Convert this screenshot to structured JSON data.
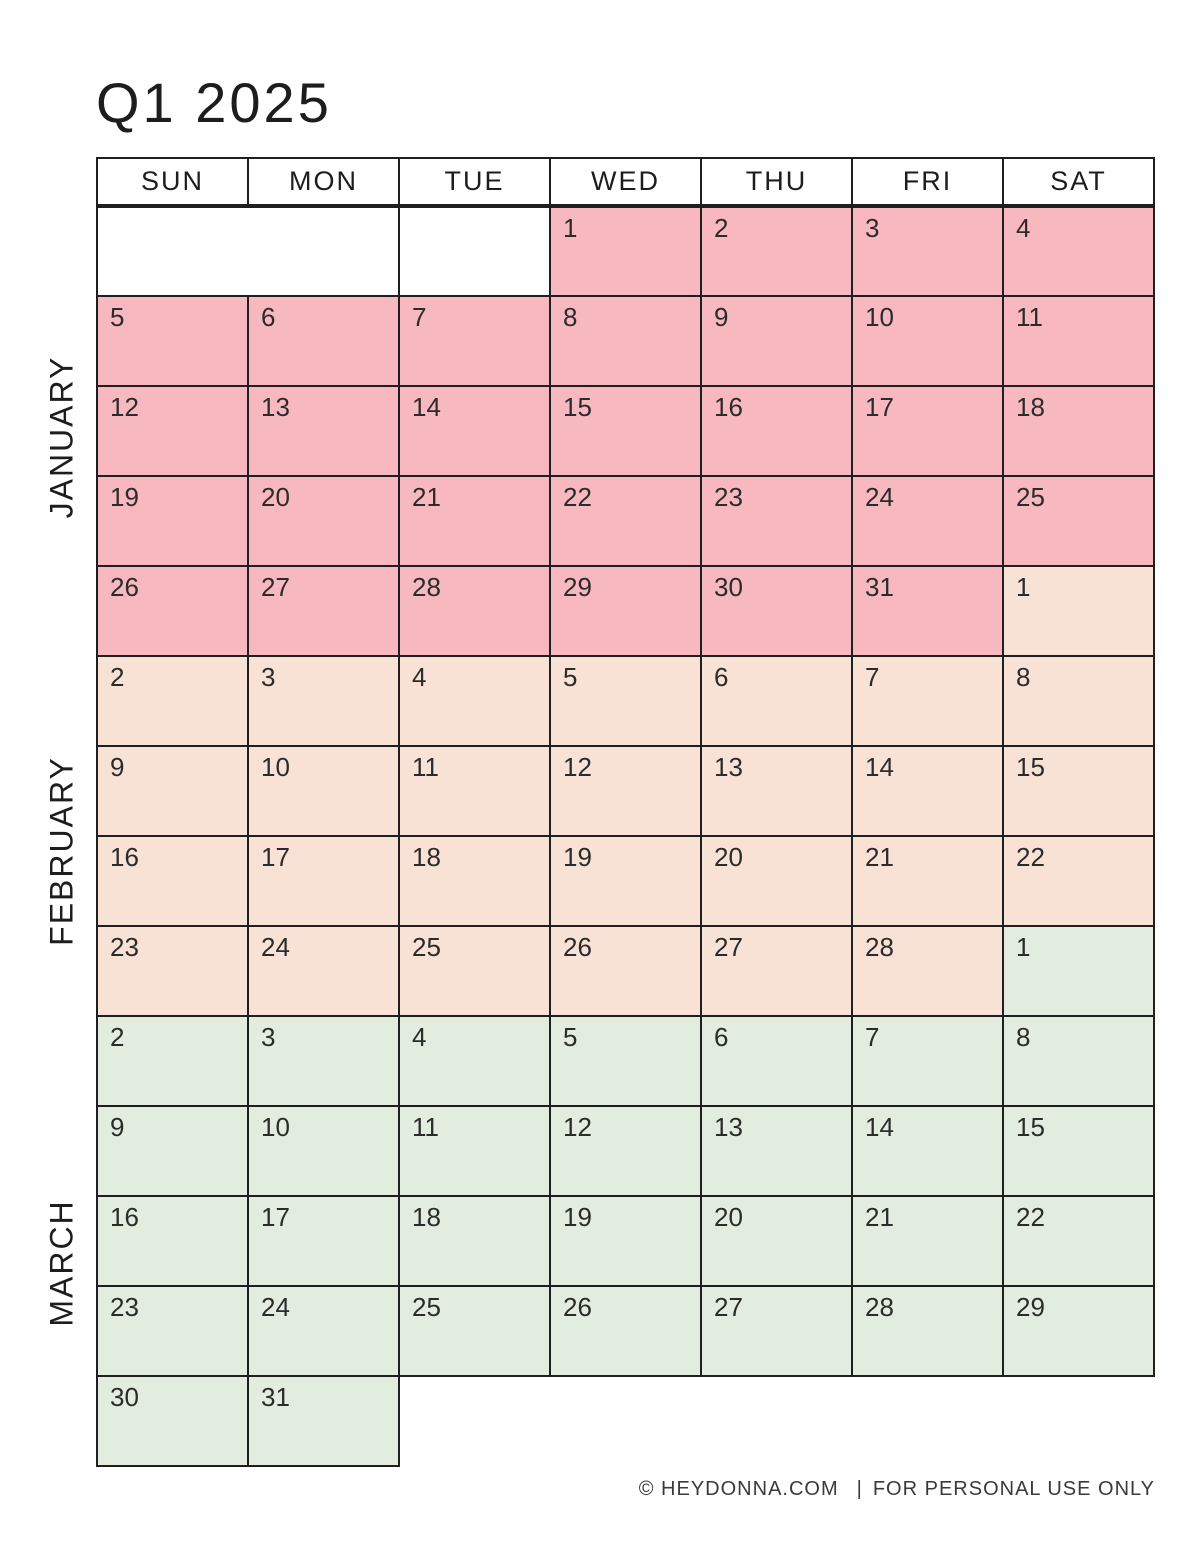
{
  "title": "Q1 2025",
  "weekday_headers": [
    "SUN",
    "MON",
    "TUE",
    "WED",
    "THU",
    "FRI",
    "SAT"
  ],
  "colors": {
    "january": "#f7b9bf",
    "february": "#f8e2d5",
    "march": "#e2ecdf",
    "border": "#1f1f1f"
  },
  "month_labels": [
    {
      "name": "JANUARY"
    },
    {
      "name": "FEBRUARY"
    },
    {
      "name": "MARCH"
    }
  ],
  "weeks": [
    {
      "cells": [
        {
          "type": "empty",
          "span": 2
        },
        {
          "type": "empty",
          "span": 1
        },
        {
          "type": "day",
          "day": 1,
          "month": "january"
        },
        {
          "type": "day",
          "day": 2,
          "month": "january"
        },
        {
          "type": "day",
          "day": 3,
          "month": "january"
        },
        {
          "type": "day",
          "day": 4,
          "month": "january"
        }
      ]
    },
    {
      "cells": [
        {
          "type": "day",
          "day": 5,
          "month": "january"
        },
        {
          "type": "day",
          "day": 6,
          "month": "january"
        },
        {
          "type": "day",
          "day": 7,
          "month": "january"
        },
        {
          "type": "day",
          "day": 8,
          "month": "january"
        },
        {
          "type": "day",
          "day": 9,
          "month": "january"
        },
        {
          "type": "day",
          "day": 10,
          "month": "january"
        },
        {
          "type": "day",
          "day": 11,
          "month": "january"
        }
      ]
    },
    {
      "cells": [
        {
          "type": "day",
          "day": 12,
          "month": "january"
        },
        {
          "type": "day",
          "day": 13,
          "month": "january"
        },
        {
          "type": "day",
          "day": 14,
          "month": "january"
        },
        {
          "type": "day",
          "day": 15,
          "month": "january"
        },
        {
          "type": "day",
          "day": 16,
          "month": "january"
        },
        {
          "type": "day",
          "day": 17,
          "month": "january"
        },
        {
          "type": "day",
          "day": 18,
          "month": "january"
        }
      ]
    },
    {
      "cells": [
        {
          "type": "day",
          "day": 19,
          "month": "january"
        },
        {
          "type": "day",
          "day": 20,
          "month": "january"
        },
        {
          "type": "day",
          "day": 21,
          "month": "january"
        },
        {
          "type": "day",
          "day": 22,
          "month": "january"
        },
        {
          "type": "day",
          "day": 23,
          "month": "january"
        },
        {
          "type": "day",
          "day": 24,
          "month": "january"
        },
        {
          "type": "day",
          "day": 25,
          "month": "january"
        }
      ]
    },
    {
      "cells": [
        {
          "type": "day",
          "day": 26,
          "month": "january"
        },
        {
          "type": "day",
          "day": 27,
          "month": "january"
        },
        {
          "type": "day",
          "day": 28,
          "month": "january"
        },
        {
          "type": "day",
          "day": 29,
          "month": "january"
        },
        {
          "type": "day",
          "day": 30,
          "month": "january"
        },
        {
          "type": "day",
          "day": 31,
          "month": "january"
        },
        {
          "type": "day",
          "day": 1,
          "month": "february"
        }
      ]
    },
    {
      "cells": [
        {
          "type": "day",
          "day": 2,
          "month": "february"
        },
        {
          "type": "day",
          "day": 3,
          "month": "february"
        },
        {
          "type": "day",
          "day": 4,
          "month": "february"
        },
        {
          "type": "day",
          "day": 5,
          "month": "february"
        },
        {
          "type": "day",
          "day": 6,
          "month": "february"
        },
        {
          "type": "day",
          "day": 7,
          "month": "february"
        },
        {
          "type": "day",
          "day": 8,
          "month": "february"
        }
      ]
    },
    {
      "cells": [
        {
          "type": "day",
          "day": 9,
          "month": "february"
        },
        {
          "type": "day",
          "day": 10,
          "month": "february"
        },
        {
          "type": "day",
          "day": 11,
          "month": "february"
        },
        {
          "type": "day",
          "day": 12,
          "month": "february"
        },
        {
          "type": "day",
          "day": 13,
          "month": "february"
        },
        {
          "type": "day",
          "day": 14,
          "month": "february"
        },
        {
          "type": "day",
          "day": 15,
          "month": "february"
        }
      ]
    },
    {
      "cells": [
        {
          "type": "day",
          "day": 16,
          "month": "february"
        },
        {
          "type": "day",
          "day": 17,
          "month": "february"
        },
        {
          "type": "day",
          "day": 18,
          "month": "february"
        },
        {
          "type": "day",
          "day": 19,
          "month": "february"
        },
        {
          "type": "day",
          "day": 20,
          "month": "february"
        },
        {
          "type": "day",
          "day": 21,
          "month": "february"
        },
        {
          "type": "day",
          "day": 22,
          "month": "february"
        }
      ]
    },
    {
      "cells": [
        {
          "type": "day",
          "day": 23,
          "month": "february"
        },
        {
          "type": "day",
          "day": 24,
          "month": "february"
        },
        {
          "type": "day",
          "day": 25,
          "month": "february"
        },
        {
          "type": "day",
          "day": 26,
          "month": "february"
        },
        {
          "type": "day",
          "day": 27,
          "month": "february"
        },
        {
          "type": "day",
          "day": 28,
          "month": "february"
        },
        {
          "type": "day",
          "day": 1,
          "month": "march"
        }
      ]
    },
    {
      "cells": [
        {
          "type": "day",
          "day": 2,
          "month": "march"
        },
        {
          "type": "day",
          "day": 3,
          "month": "march"
        },
        {
          "type": "day",
          "day": 4,
          "month": "march"
        },
        {
          "type": "day",
          "day": 5,
          "month": "march"
        },
        {
          "type": "day",
          "day": 6,
          "month": "march"
        },
        {
          "type": "day",
          "day": 7,
          "month": "march"
        },
        {
          "type": "day",
          "day": 8,
          "month": "march"
        }
      ]
    },
    {
      "cells": [
        {
          "type": "day",
          "day": 9,
          "month": "march"
        },
        {
          "type": "day",
          "day": 10,
          "month": "march"
        },
        {
          "type": "day",
          "day": 11,
          "month": "march"
        },
        {
          "type": "day",
          "day": 12,
          "month": "march"
        },
        {
          "type": "day",
          "day": 13,
          "month": "march"
        },
        {
          "type": "day",
          "day": 14,
          "month": "march"
        },
        {
          "type": "day",
          "day": 15,
          "month": "march"
        }
      ]
    },
    {
      "cells": [
        {
          "type": "day",
          "day": 16,
          "month": "march"
        },
        {
          "type": "day",
          "day": 17,
          "month": "march"
        },
        {
          "type": "day",
          "day": 18,
          "month": "march"
        },
        {
          "type": "day",
          "day": 19,
          "month": "march"
        },
        {
          "type": "day",
          "day": 20,
          "month": "march"
        },
        {
          "type": "day",
          "day": 21,
          "month": "march"
        },
        {
          "type": "day",
          "day": 22,
          "month": "march"
        }
      ]
    },
    {
      "cells": [
        {
          "type": "day",
          "day": 23,
          "month": "march"
        },
        {
          "type": "day",
          "day": 24,
          "month": "march"
        },
        {
          "type": "day",
          "day": 25,
          "month": "march"
        },
        {
          "type": "day",
          "day": 26,
          "month": "march"
        },
        {
          "type": "day",
          "day": 27,
          "month": "march"
        },
        {
          "type": "day",
          "day": 28,
          "month": "march"
        },
        {
          "type": "day",
          "day": 29,
          "month": "march"
        }
      ]
    },
    {
      "cells": [
        {
          "type": "day",
          "day": 30,
          "month": "march"
        },
        {
          "type": "day",
          "day": 31,
          "month": "march"
        }
      ]
    }
  ],
  "footer": {
    "copyright": "© HEYDONNA.COM",
    "separator": "|",
    "notice": "FOR PERSONAL USE ONLY"
  }
}
